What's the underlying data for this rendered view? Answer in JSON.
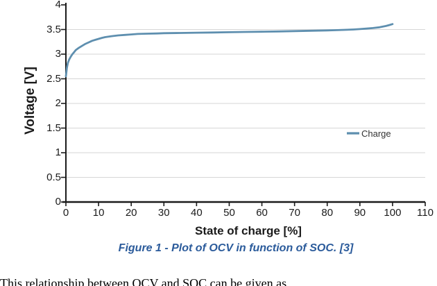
{
  "figure": {
    "caption": "Figure 1 - Plot of OCV in function of SOC. [3]",
    "body_text_partial": "This relationship between OCV and SOC can be given as"
  },
  "colors": {
    "series_line": "#5E8FAF",
    "gridline": "#D6D6D6",
    "axis": "#1a1a1a",
    "caption_blue": "#2B5B9B",
    "legend_text": "#333333"
  },
  "chart_data": {
    "type": "line",
    "title": "",
    "xlabel": "State of charge [%]",
    "ylabel": "Voltage [V]",
    "xlim": [
      0,
      110
    ],
    "ylim": [
      0,
      4
    ],
    "xticks": [
      0,
      10,
      20,
      30,
      40,
      50,
      60,
      70,
      80,
      90,
      100,
      110
    ],
    "xtick_labels": [
      "0",
      "10",
      "20",
      "30",
      "40",
      "50",
      "60",
      "70",
      "80",
      "90",
      "100",
      "110"
    ],
    "yticks": [
      0,
      0.5,
      1,
      1.5,
      2,
      2.5,
      3,
      3.5,
      4
    ],
    "ytick_labels": [
      "0",
      "0.5",
      "1",
      "1.5",
      "2",
      "2.5",
      "3",
      "3.5",
      "4"
    ],
    "grid": "horizontal",
    "legend": {
      "position": "middle-right"
    },
    "series": [
      {
        "name": "Charge",
        "color": "#5E8FAF",
        "points": [
          [
            0,
            2.55
          ],
          [
            0.3,
            2.72
          ],
          [
            0.6,
            2.82
          ],
          [
            1,
            2.89
          ],
          [
            1.5,
            2.95
          ],
          [
            2,
            3.0
          ],
          [
            2.5,
            3.04
          ],
          [
            3,
            3.08
          ],
          [
            4,
            3.13
          ],
          [
            5,
            3.17
          ],
          [
            6,
            3.21
          ],
          [
            7,
            3.24
          ],
          [
            8,
            3.27
          ],
          [
            9,
            3.29
          ],
          [
            10,
            3.31
          ],
          [
            11,
            3.33
          ],
          [
            12,
            3.345
          ],
          [
            14,
            3.365
          ],
          [
            16,
            3.38
          ],
          [
            18,
            3.39
          ],
          [
            20,
            3.4
          ],
          [
            22,
            3.41
          ],
          [
            25,
            3.415
          ],
          [
            28,
            3.42
          ],
          [
            30,
            3.425
          ],
          [
            35,
            3.43
          ],
          [
            40,
            3.435
          ],
          [
            45,
            3.44
          ],
          [
            50,
            3.445
          ],
          [
            55,
            3.45
          ],
          [
            60,
            3.455
          ],
          [
            65,
            3.46
          ],
          [
            70,
            3.468
          ],
          [
            75,
            3.475
          ],
          [
            80,
            3.482
          ],
          [
            83,
            3.488
          ],
          [
            86,
            3.495
          ],
          [
            88,
            3.5
          ],
          [
            90,
            3.508
          ],
          [
            92,
            3.518
          ],
          [
            94,
            3.53
          ],
          [
            96,
            3.545
          ],
          [
            98,
            3.572
          ],
          [
            99,
            3.59
          ],
          [
            100,
            3.61
          ]
        ]
      }
    ]
  }
}
